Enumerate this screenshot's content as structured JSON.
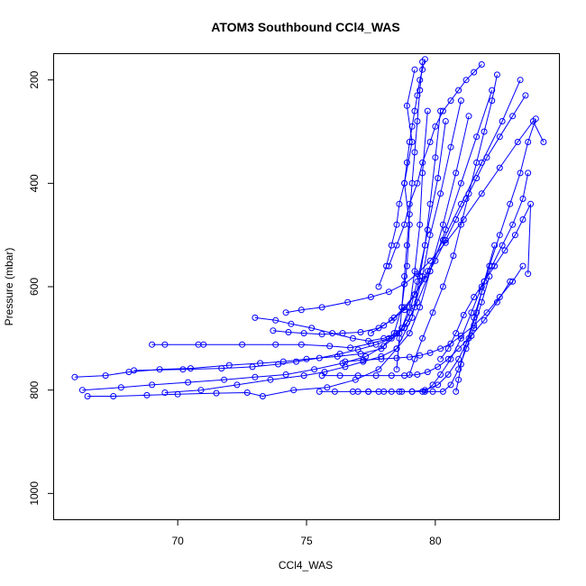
{
  "chart_data": {
    "type": "scatter",
    "title": "ATOM3 Southbound CCl4_WAS",
    "xlabel": "CCl4_WAS",
    "ylabel": "Pressure (mbar)",
    "xlim": [
      65.2,
      84.8
    ],
    "ylim": [
      1050,
      150
    ],
    "y_reversed": true,
    "grid": false,
    "legend": "none",
    "x_ticks": [
      70,
      75,
      80
    ],
    "y_ticks": [
      200,
      400,
      600,
      800,
      1000
    ],
    "point_style": "open-circle",
    "color": "#0000ff",
    "series": [
      {
        "x": [
          66.0,
          67.2,
          68.1,
          69.3,
          70.5,
          72.0,
          73.2,
          74.1,
          75.0,
          76.2,
          77.1,
          77.9,
          78.4,
          78.7,
          78.9,
          79.0,
          78.8,
          79.1,
          78.9,
          79.2
        ],
        "y": [
          775,
          772,
          765,
          760,
          758,
          752,
          748,
          745,
          740,
          735,
          730,
          720,
          690,
          640,
          560,
          480,
          400,
          320,
          250,
          180
        ]
      },
      {
        "x": [
          66.3,
          67.8,
          69.0,
          70.4,
          71.8,
          73.0,
          74.2,
          75.3,
          76.4,
          77.3,
          78.0,
          78.6,
          79.0,
          79.3,
          79.6,
          79.8,
          80.0,
          80.2
        ],
        "y": [
          800,
          795,
          790,
          785,
          780,
          775,
          770,
          760,
          748,
          735,
          715,
          690,
          650,
          590,
          520,
          440,
          350,
          260
        ]
      },
      {
        "x": [
          66.5,
          67.5,
          68.8,
          70.0,
          71.5,
          72.7,
          73.3,
          74.5,
          75.8,
          76.9,
          77.8,
          78.5,
          79.1,
          79.4,
          79.7,
          80.1,
          80.4
        ],
        "y": [
          812,
          812,
          810,
          808,
          806,
          805,
          812,
          800,
          795,
          780,
          760,
          720,
          660,
          580,
          490,
          390,
          280
        ]
      },
      {
        "x": [
          69.0,
          69.5,
          70.8,
          71.0,
          72.5,
          73.8,
          74.8,
          75.9,
          76.7,
          77.5,
          78.2,
          78.7,
          79.0,
          79.2,
          79.4,
          79.5,
          79.7
        ],
        "y": [
          712,
          712,
          712,
          712,
          712,
          712,
          712,
          715,
          718,
          710,
          700,
          680,
          640,
          570,
          480,
          380,
          260
        ]
      },
      {
        "x": [
          68.3,
          70.2,
          71.7,
          72.9,
          73.9,
          74.6,
          75.5,
          76.3,
          77.0,
          77.7,
          78.3,
          78.8,
          79.2,
          79.5,
          79.8,
          80.2,
          80.6,
          81.0
        ],
        "y": [
          762,
          760,
          758,
          755,
          750,
          745,
          738,
          730,
          722,
          712,
          700,
          680,
          640,
          580,
          500,
          420,
          330,
          240
        ]
      },
      {
        "x": [
          69.5,
          70.9,
          72.3,
          73.6,
          74.9,
          75.7,
          76.5,
          77.2,
          77.9,
          78.5,
          79.0,
          79.4,
          79.8,
          80.3,
          80.8,
          81.3
        ],
        "y": [
          805,
          800,
          790,
          780,
          772,
          765,
          755,
          745,
          735,
          720,
          690,
          640,
          570,
          480,
          380,
          270
        ]
      },
      {
        "x": [
          73.0,
          73.8,
          74.4,
          75.2,
          76.0,
          76.8,
          77.4,
          78.0,
          78.5,
          78.9,
          79.3,
          79.8,
          80.4,
          81.0,
          81.6,
          82.2
        ],
        "y": [
          660,
          665,
          672,
          680,
          690,
          700,
          705,
          700,
          690,
          670,
          630,
          570,
          490,
          400,
          310,
          220
        ]
      },
      {
        "x": [
          73.7,
          74.3,
          74.9,
          75.6,
          76.4,
          77.1,
          77.8,
          78.3,
          78.8,
          79.2,
          79.7,
          80.3,
          81.0,
          81.8,
          82.6,
          83.3
        ],
        "y": [
          685,
          688,
          690,
          692,
          690,
          688,
          680,
          665,
          645,
          615,
          570,
          510,
          440,
          360,
          280,
          200
        ]
      },
      {
        "x": [
          74.2,
          74.8,
          75.6,
          76.6,
          77.5,
          78.2,
          78.8,
          79.3,
          79.8,
          80.4,
          81.1,
          81.8,
          82.5,
          83.2,
          83.8,
          84.2
        ],
        "y": [
          650,
          645,
          640,
          630,
          620,
          610,
          595,
          575,
          550,
          515,
          470,
          420,
          370,
          320,
          280,
          320
        ]
      },
      {
        "x": [
          75.5,
          76.1,
          76.8,
          77.4,
          78.0,
          78.6,
          79.1,
          79.6,
          80.1,
          80.5,
          80.9,
          81.3,
          81.6,
          81.9,
          82.3
        ],
        "y": [
          803,
          803,
          803,
          803,
          803,
          803,
          803,
          800,
          790,
          770,
          740,
          700,
          650,
          590,
          520
        ]
      },
      {
        "x": [
          77.0,
          77.4,
          77.8,
          78.3,
          78.7,
          79.1,
          79.5,
          79.9,
          80.3,
          80.6,
          80.9,
          81.2,
          81.5,
          81.8,
          82.1
        ],
        "y": [
          803,
          803,
          803,
          803,
          803,
          803,
          803,
          803,
          803,
          790,
          760,
          720,
          680,
          630,
          580
        ]
      },
      {
        "x": [
          75.6,
          76.3,
          77.0,
          77.7,
          78.3,
          78.8,
          79.3,
          79.7,
          80.1,
          80.5,
          80.9,
          81.4,
          81.9,
          82.4,
          82.9
        ],
        "y": [
          772,
          772,
          772,
          772,
          772,
          772,
          770,
          765,
          755,
          740,
          720,
          695,
          665,
          630,
          590
        ]
      },
      {
        "x": [
          76.5,
          77.2,
          77.9,
          78.5,
          79.0,
          79.4,
          79.8,
          80.2,
          80.6,
          81.0,
          81.5,
          82.0,
          82.5,
          83.0,
          83.4
        ],
        "y": [
          745,
          742,
          740,
          738,
          736,
          733,
          728,
          720,
          710,
          695,
          675,
          650,
          620,
          590,
          560
        ]
      },
      {
        "x": [
          77.5,
          78.0,
          78.4,
          78.8,
          79.2,
          79.6,
          80.0,
          80.4,
          80.8,
          81.2,
          81.6,
          82.0,
          82.5,
          83.0,
          83.5
        ],
        "y": [
          690,
          675,
          660,
          640,
          615,
          585,
          550,
          510,
          470,
          430,
          390,
          350,
          310,
          270,
          230
        ]
      },
      {
        "x": [
          78.2,
          78.5,
          78.8,
          79.0,
          79.3,
          79.5,
          79.8,
          80.0,
          80.3,
          80.6,
          80.9,
          81.2,
          81.5,
          81.8
        ],
        "y": [
          560,
          520,
          480,
          440,
          400,
          360,
          320,
          290,
          260,
          240,
          220,
          200,
          185,
          170
        ]
      },
      {
        "x": [
          77.8,
          78.1,
          78.3,
          78.5,
          78.6,
          78.8,
          78.9,
          79.0,
          79.1,
          79.2,
          79.3,
          79.4,
          79.5,
          79.6
        ],
        "y": [
          600,
          560,
          520,
          480,
          440,
          400,
          360,
          320,
          290,
          260,
          230,
          200,
          180,
          160
        ]
      },
      {
        "x": [
          78.5,
          78.6,
          78.7,
          78.8,
          78.9,
          79.0,
          79.1,
          79.2,
          79.3,
          79.4,
          79.5
        ],
        "y": [
          760,
          700,
          640,
          580,
          520,
          460,
          400,
          340,
          280,
          220,
          165
        ]
      },
      {
        "x": [
          79.0,
          79.2,
          79.5,
          79.9,
          80.3,
          80.7,
          81.0,
          81.3,
          81.6,
          81.9,
          82.2,
          82.4
        ],
        "y": [
          770,
          740,
          700,
          650,
          600,
          540,
          480,
          420,
          360,
          300,
          240,
          190
        ]
      },
      {
        "x": [
          80.8,
          80.9,
          81.0,
          81.2,
          81.5,
          81.8,
          82.1,
          82.5,
          82.9,
          83.3,
          83.6,
          83.9
        ],
        "y": [
          803,
          780,
          750,
          710,
          660,
          610,
          560,
          500,
          440,
          380,
          320,
          275
        ]
      },
      {
        "x": [
          79.6,
          79.9,
          80.2,
          80.6,
          81.0,
          81.4,
          81.8,
          82.2,
          82.6,
          83.0,
          83.4,
          83.6
        ],
        "y": [
          803,
          790,
          770,
          740,
          700,
          650,
          600,
          560,
          520,
          480,
          430,
          380
        ]
      },
      {
        "x": [
          80.2,
          80.5,
          80.8,
          81.1,
          81.5,
          81.9,
          82.3,
          82.7,
          83.1,
          83.4,
          83.7,
          83.6
        ],
        "y": [
          740,
          720,
          690,
          655,
          620,
          590,
          560,
          530,
          500,
          470,
          440,
          575
        ]
      }
    ]
  }
}
